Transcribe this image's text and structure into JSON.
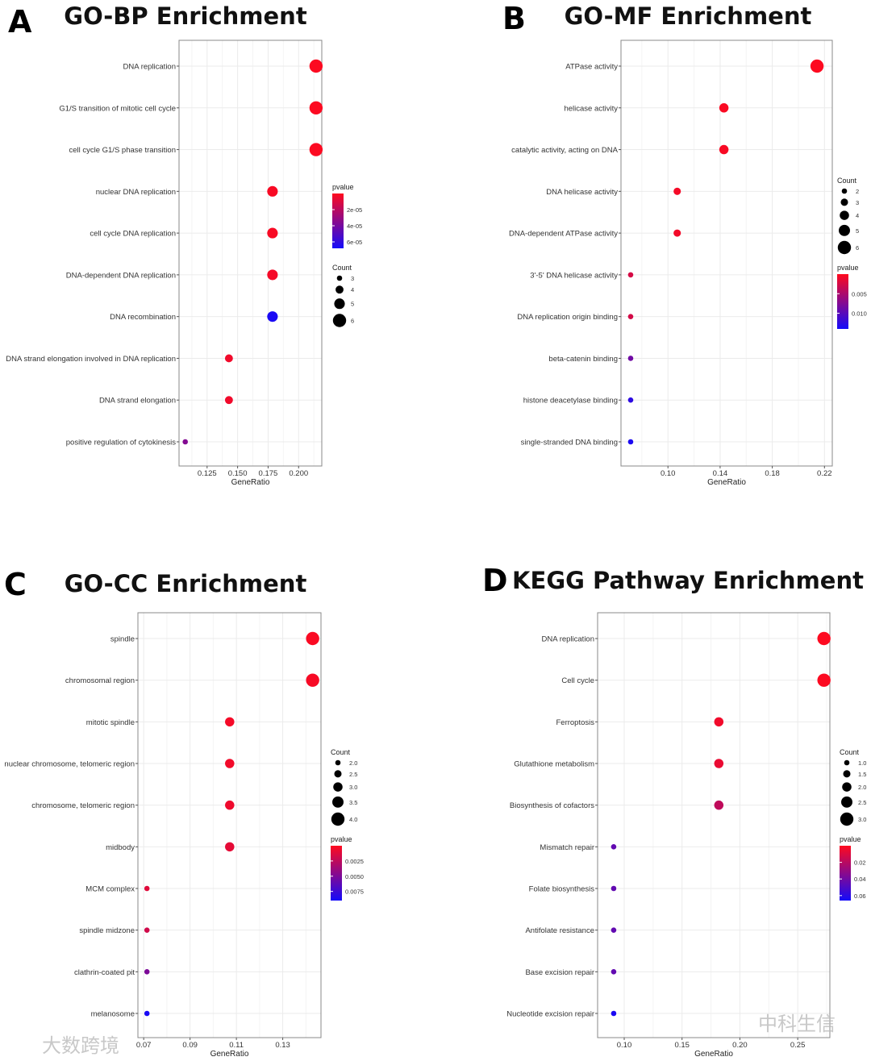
{
  "watermarks": [
    "大数跨境",
    "中科生信"
  ],
  "chart_data": [
    {
      "type": "scatter",
      "panel": "A",
      "title": "GO-BP Enrichment",
      "xlabel": "GeneRatio",
      "xticks": [
        0.125,
        0.15,
        0.175,
        0.2
      ],
      "xtick_labels": [
        "0.125",
        "0.150",
        "0.175",
        "0.200"
      ],
      "xlim": [
        0.102,
        0.219
      ],
      "categories": [
        "DNA replication",
        "G1/S transition of mitotic cell cycle",
        "cell cycle G1/S phase transition",
        "nuclear DNA replication",
        "cell cycle DNA replication",
        "DNA-dependent DNA replication",
        "DNA recombination",
        "DNA strand elongation involved in DNA replication",
        "DNA strand elongation",
        "positive regulation of cytokinesis"
      ],
      "gene_ratio": [
        0.2143,
        0.2143,
        0.2143,
        0.1786,
        0.1786,
        0.1786,
        0.1786,
        0.1429,
        0.1429,
        0.1071
      ],
      "count": [
        6,
        6,
        6,
        5,
        5,
        5,
        5,
        4,
        4,
        3
      ],
      "pvalue": [
        1e-06,
        1e-06,
        1e-06,
        2e-06,
        2e-06,
        3e-06,
        6.6e-05,
        4e-06,
        4e-06,
        3.6e-05
      ],
      "color_title": "pvalue",
      "color_range": [
        0,
        6.8e-05
      ],
      "color_ticks": [
        2e-05,
        4e-05,
        6e-05
      ],
      "color_tick_labels": [
        "2e-05",
        "4e-05",
        "6e-05"
      ],
      "size_title": "Count",
      "size_legend": [
        3,
        4,
        5,
        6
      ],
      "size_legend_labels": [
        "3",
        "4",
        "5",
        "6"
      ],
      "legend_order": "color-first",
      "grid": true
    },
    {
      "type": "scatter",
      "panel": "B",
      "title": "GO-MF Enrichment",
      "xlabel": "GeneRatio",
      "xticks": [
        0.1,
        0.14,
        0.18,
        0.22
      ],
      "xtick_labels": [
        "0.10",
        "0.14",
        "0.18",
        "0.22"
      ],
      "xlim": [
        0.064,
        0.226
      ],
      "categories": [
        "ATPase activity",
        "helicase activity",
        "catalytic activity, acting on DNA",
        "DNA helicase activity",
        "DNA-dependent ATPase activity",
        "3'-5' DNA helicase activity",
        "DNA replication origin binding",
        "beta-catenin binding",
        "histone deacetylase binding",
        "single-stranded DNA binding"
      ],
      "gene_ratio": [
        0.2143,
        0.1429,
        0.1429,
        0.1071,
        0.1071,
        0.0714,
        0.0714,
        0.0714,
        0.0714,
        0.0714
      ],
      "count": [
        6,
        4,
        4,
        3,
        3,
        2,
        2,
        2,
        2,
        2
      ],
      "pvalue": [
        0.0001,
        0.0003,
        0.0004,
        0.0006,
        0.0007,
        0.0025,
        0.0026,
        0.0085,
        0.0125,
        0.0135
      ],
      "color_title": "pvalue",
      "color_range": [
        0,
        0.014
      ],
      "color_ticks": [
        0.005,
        0.01
      ],
      "color_tick_labels": [
        "0.005",
        "0.010"
      ],
      "size_title": "Count",
      "size_legend": [
        2,
        3,
        4,
        5,
        6
      ],
      "size_legend_labels": [
        "2",
        "3",
        "4",
        "5",
        "6"
      ],
      "legend_order": "size-first",
      "grid": true
    },
    {
      "type": "scatter",
      "panel": "C",
      "title": "GO-CC Enrichment",
      "xlabel": "GeneRatio",
      "xticks": [
        0.07,
        0.09,
        0.11,
        0.13
      ],
      "xtick_labels": [
        "0.07",
        "0.09",
        "0.11",
        "0.13"
      ],
      "xlim": [
        0.0675,
        0.1465
      ],
      "categories": [
        "spindle",
        "chromosomal region",
        "mitotic spindle",
        "nuclear chromosome, telomeric region",
        "chromosome, telomeric region",
        "midbody",
        "MCM complex",
        "spindle midzone",
        "clathrin-coated pit",
        "melanosome"
      ],
      "gene_ratio": [
        0.1429,
        0.1429,
        0.1071,
        0.1071,
        0.1071,
        0.1071,
        0.0714,
        0.0714,
        0.0714,
        0.0714
      ],
      "count": [
        4,
        4,
        3,
        3,
        3,
        3,
        2,
        2,
        2,
        2
      ],
      "pvalue": [
        0.0002,
        0.0003,
        0.0004,
        0.0005,
        0.0006,
        0.001,
        0.0012,
        0.0018,
        0.005,
        0.0088
      ],
      "color_title": "pvalue",
      "color_range": [
        0,
        0.009
      ],
      "color_ticks": [
        0.0025,
        0.005,
        0.0075
      ],
      "color_tick_labels": [
        "0.0025",
        "0.0050",
        "0.0075"
      ],
      "size_title": "Count",
      "size_legend": [
        2.0,
        2.5,
        3.0,
        3.5,
        4.0
      ],
      "size_legend_labels": [
        "2.0",
        "2.5",
        "3.0",
        "3.5",
        "4.0"
      ],
      "legend_order": "size-first",
      "grid": true
    },
    {
      "type": "scatter",
      "panel": "D",
      "title": "KEGG Pathway Enrichment",
      "xlabel": "GeneRatio",
      "xticks": [
        0.1,
        0.15,
        0.2,
        0.25
      ],
      "xtick_labels": [
        "0.10",
        "0.15",
        "0.20",
        "0.25"
      ],
      "xlim": [
        0.077,
        0.2778
      ],
      "categories": [
        "DNA replication",
        "Cell cycle",
        "Ferroptosis",
        "Glutathione metabolism",
        "Biosynthesis of cofactors",
        "Mismatch repair",
        "Folate biosynthesis",
        "Antifolate resistance",
        "Base excision repair",
        "Nucleotide excision repair"
      ],
      "gene_ratio": [
        0.2727,
        0.2727,
        0.1818,
        0.1818,
        0.1818,
        0.0909,
        0.0909,
        0.0909,
        0.0909,
        0.0909
      ],
      "count": [
        3,
        3,
        2,
        2,
        2,
        1,
        1,
        1,
        1,
        1
      ],
      "pvalue": [
        0.0005,
        0.0008,
        0.004,
        0.006,
        0.018,
        0.044,
        0.044,
        0.044,
        0.044,
        0.064
      ],
      "color_title": "pvalue",
      "color_range": [
        0,
        0.066
      ],
      "color_ticks": [
        0.02,
        0.04,
        0.06
      ],
      "color_tick_labels": [
        "0.02",
        "0.04",
        "0.06"
      ],
      "size_title": "Count",
      "size_legend": [
        1.0,
        1.5,
        2.0,
        2.5,
        3.0
      ],
      "size_legend_labels": [
        "1.0",
        "1.5",
        "2.0",
        "2.5",
        "3.0"
      ],
      "legend_order": "size-first",
      "grid": true
    }
  ]
}
